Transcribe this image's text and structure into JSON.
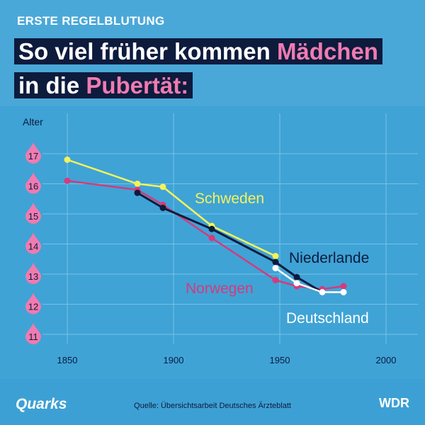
{
  "header": {
    "kicker": "ERSTE REGELBLUTUNG",
    "line1_pre": "So viel früher kommen ",
    "line1_highlight": "Mädchen",
    "line2_pre": "in die ",
    "line2_highlight": "Pubertät:"
  },
  "footer": {
    "brand": "Quarks",
    "source": "Quelle: Übersichtsarbeit Deutsches Ärzteblatt",
    "broadcaster": "WDR"
  },
  "colors": {
    "background": "#4aa8d8",
    "navy": "#0d1b3d",
    "pink": "#f07bb0",
    "yellow": "#f5f25a",
    "norway": "#d63a7c",
    "white": "#ffffff"
  },
  "chart_data": {
    "type": "line",
    "ylabel": "Alter",
    "xlabel": "",
    "xlim": [
      1850,
      2000
    ],
    "ylim": [
      11,
      17
    ],
    "x_ticks": [
      1850,
      1900,
      1950,
      2000
    ],
    "y_ticks": [
      11,
      12,
      13,
      14,
      15,
      16,
      17
    ],
    "grid": true,
    "series": [
      {
        "name": "Schweden",
        "color": "#f5f25a",
        "points": [
          [
            1850,
            16.8
          ],
          [
            1883,
            16.0
          ],
          [
            1895,
            15.9
          ],
          [
            1918,
            14.6
          ],
          [
            1948,
            13.6
          ]
        ]
      },
      {
        "name": "Norwegen",
        "color": "#d63a7c",
        "points": [
          [
            1850,
            16.1
          ],
          [
            1883,
            15.8
          ],
          [
            1895,
            15.3
          ],
          [
            1918,
            14.2
          ],
          [
            1948,
            12.8
          ],
          [
            1958,
            12.6
          ],
          [
            1970,
            12.5
          ],
          [
            1980,
            12.6
          ]
        ]
      },
      {
        "name": "Niederlande",
        "color": "#0d1b3d",
        "points": [
          [
            1883,
            15.7
          ],
          [
            1895,
            15.2
          ],
          [
            1918,
            14.5
          ],
          [
            1948,
            13.4
          ],
          [
            1958,
            12.9
          ],
          [
            1970,
            12.4
          ]
        ]
      },
      {
        "name": "Deutschland",
        "color": "#ffffff",
        "points": [
          [
            1948,
            13.2
          ],
          [
            1958,
            12.7
          ],
          [
            1970,
            12.4
          ],
          [
            1980,
            12.4
          ]
        ]
      }
    ]
  }
}
